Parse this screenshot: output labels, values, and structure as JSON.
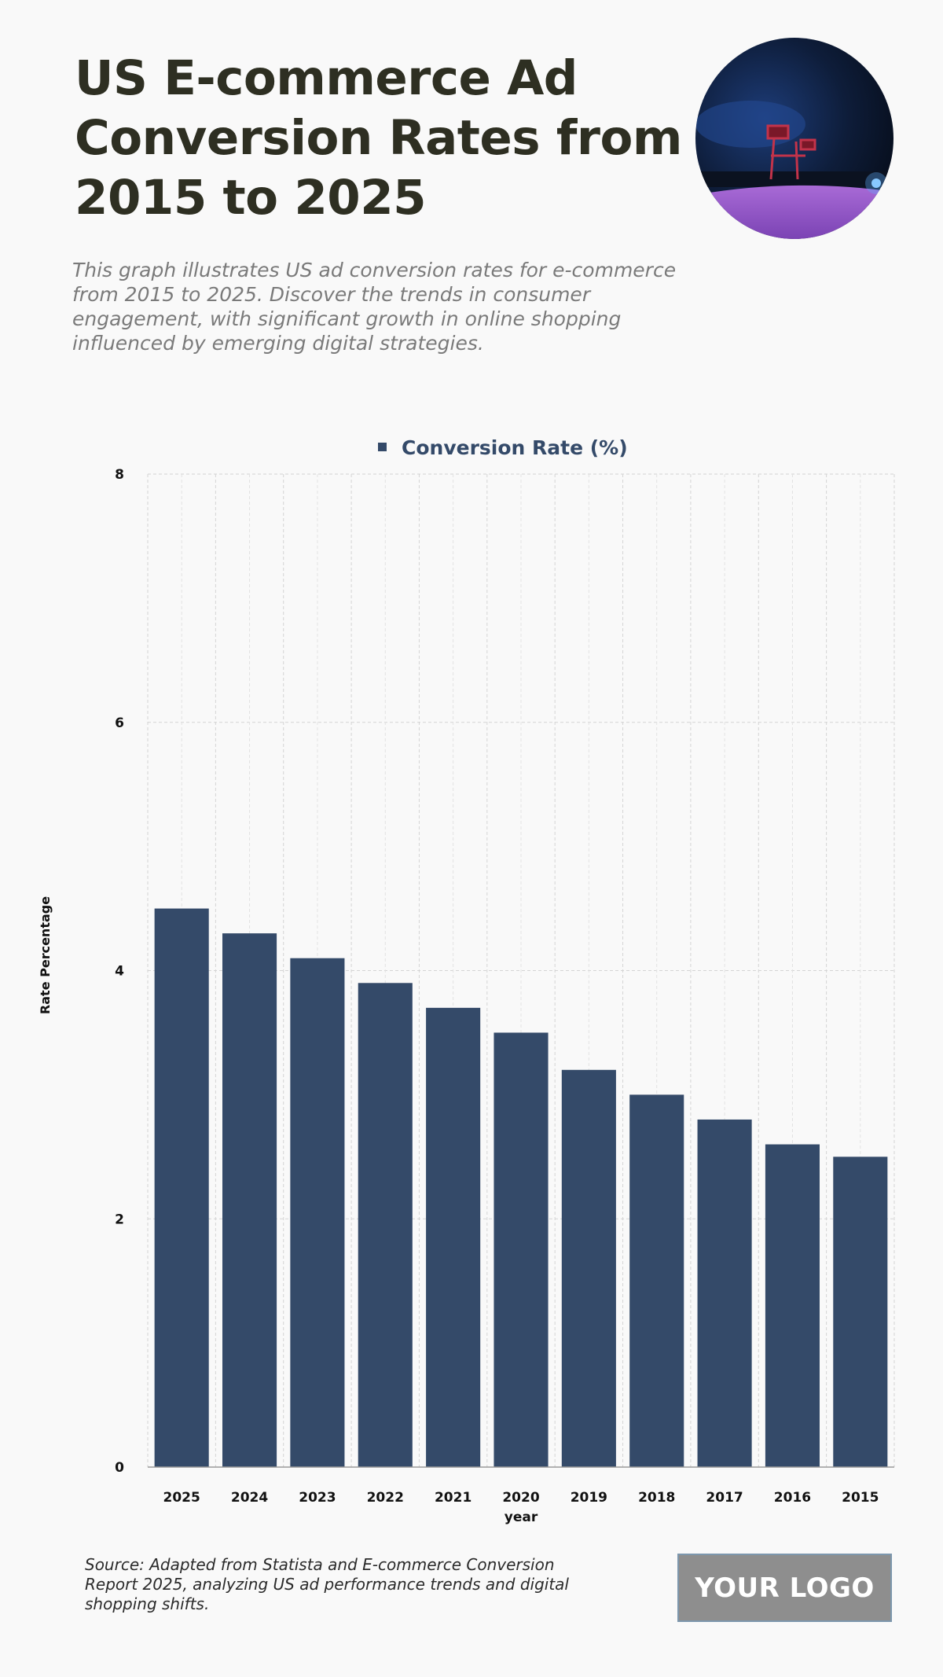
{
  "header": {
    "title": "US E-commerce Ad Conversion Rates from 2015 to 2025",
    "subtitle": "This graph illustrates US ad conversion rates for e-commerce from 2015 to 2025. Discover the trends in consumer engagement, with significant growth in online shopping influenced by emerging digital strategies."
  },
  "footer": {
    "source": "Source: Adapted from Statista and E-commerce Conversion Report 2025, analyzing US ad performance trends and digital shopping shifts.",
    "logo_text": "YOUR LOGO"
  },
  "colors": {
    "bar": "#344a69",
    "title": "#2e2f22",
    "legend_text": "#344a69"
  },
  "chart_data": {
    "type": "bar",
    "xlabel": "year",
    "ylabel": "Rate Percentage",
    "ylim": [
      0,
      8
    ],
    "yticks": [
      0,
      2,
      4,
      6,
      8
    ],
    "grid": true,
    "legend_position": "top-center",
    "categories": [
      "2025",
      "2024",
      "2023",
      "2022",
      "2021",
      "2020",
      "2019",
      "2018",
      "2017",
      "2016",
      "2015"
    ],
    "series": [
      {
        "name": "Conversion Rate (%)",
        "values": [
          4.5,
          4.3,
          4.1,
          3.9,
          3.7,
          3.5,
          3.2,
          3.0,
          2.8,
          2.6,
          2.5
        ]
      }
    ]
  }
}
